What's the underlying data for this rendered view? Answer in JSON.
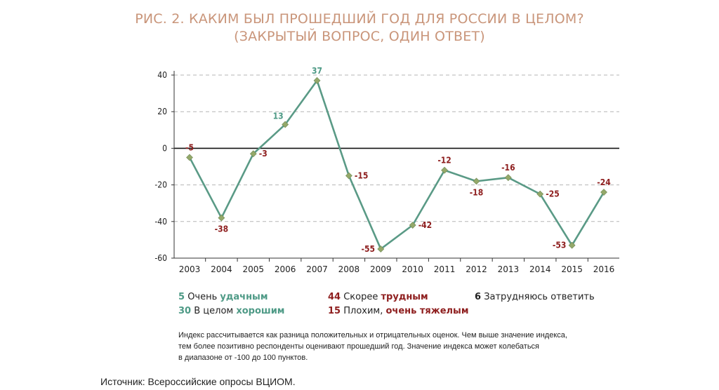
{
  "title_line1": "РИС. 2. КАКИМ БЫЛ ПРОШЕДШИЙ ГОД ДЛЯ РОССИИ В ЦЕЛОМ?",
  "title_line2": "(ЗАКРЫТЫЙ ВОПРОС, ОДИН ОТВЕТ)",
  "colors": {
    "line": "#5a9a86",
    "marker": "#94a86a",
    "positive": "#4e9a86",
    "negative": "#8e1e1e",
    "title": "#c9957a"
  },
  "chart_data": {
    "type": "line",
    "categories": [
      "2003",
      "2004",
      "2005",
      "2006",
      "2007",
      "2008",
      "2009",
      "2010",
      "2011",
      "2012",
      "2013",
      "2014",
      "2015",
      "2016"
    ],
    "series": [
      {
        "values": [
          -5,
          -38,
          -3,
          13,
          37,
          -15,
          -55,
          -42,
          -12,
          -18,
          -16,
          -25,
          -53,
          -24
        ]
      }
    ],
    "data_labels": [
      "-5",
      "-38",
      "-3",
      "13",
      "37",
      "-15",
      "-55",
      "-42",
      "-12",
      "-18",
      "-16",
      "-25",
      "-53",
      "-24"
    ],
    "yticks": [
      40,
      20,
      0,
      -20,
      -40,
      -60
    ],
    "ytick_labels": [
      "40",
      "20",
      "0",
      "-20",
      "-40",
      "-60"
    ],
    "ylim": [
      -60,
      40
    ],
    "grid": true
  },
  "legend": {
    "col1": [
      {
        "value": "5",
        "pre": "Очень ",
        "emph": "удачным"
      },
      {
        "value": "30",
        "pre": "В целом ",
        "emph": "хорошим"
      }
    ],
    "col2": [
      {
        "value": "44",
        "pre": "Скорее ",
        "emph": "трудным"
      },
      {
        "value": "15",
        "pre": "Плохим, ",
        "emph": "очень тяжелым"
      }
    ],
    "col3": [
      {
        "value": "6",
        "text": "Затрудняюсь ответить"
      }
    ]
  },
  "note": {
    "line1": "Индекс рассчитывается как разница положительных и отрицательных оценок. Чем выше значение индекса,",
    "line2": "тем более позитивно респонденты оценивают прошедший год. Значение индекса может колебаться",
    "line3": "в диапазоне от -100 до 100 пунктов."
  },
  "source": "Источник: Всероссийские опросы ВЦИОМ."
}
